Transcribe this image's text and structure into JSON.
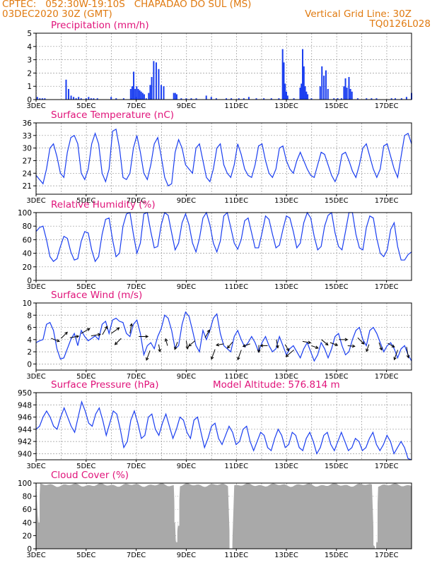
{
  "header": {
    "line1": "CPTEC:   052:30W-19:10S   CHAPADAO DO SUL (MS)",
    "line2": "03DEC2020 30Z (GMT)",
    "grid_note": "Vertical Grid Line: 30Z",
    "run_id": "TQ0126L028"
  },
  "colors": {
    "header": "#e07a10",
    "panel_title": "#e0137a",
    "series": "#1a3ef0",
    "cloud": "#a9a9a9",
    "grid": "#999999"
  },
  "chart_data": [
    {
      "id": "precip",
      "type": "bar",
      "title": "Precipitation (mm/h)",
      "ylim": [
        0,
        5
      ],
      "yticks": [
        0,
        1,
        2,
        3,
        4,
        5
      ],
      "xlim": [
        0,
        15
      ],
      "xticks": [
        "3DEC",
        "5DEC",
        "7DEC",
        "9DEC",
        "11DEC",
        "13DEC",
        "15DEC",
        "17DEC"
      ],
      "x": [
        0.05,
        0.15,
        0.25,
        0.35,
        1.2,
        1.3,
        1.4,
        1.5,
        1.6,
        1.7,
        1.8,
        2.0,
        2.1,
        2.2,
        2.3,
        2.45,
        3.0,
        3.2,
        3.5,
        3.8,
        4.0,
        4.2,
        4.4,
        4.6,
        4.9,
        5.8,
        6.0,
        6.2,
        6.4,
        6.8,
        7.0,
        7.2,
        7.6,
        7.8,
        8.1,
        8.3,
        8.5,
        8.8,
        9.1,
        9.4,
        9.7,
        10.0,
        10.3,
        10.6,
        11.0,
        11.5,
        11.9,
        12.05,
        12.2,
        12.55,
        12.85,
        13.2,
        13.4,
        13.6,
        14.2,
        14.35,
        14.6,
        14.8,
        15.0
      ],
      "y": [
        0.2,
        0.1,
        0.1,
        0.1,
        1.5,
        0.8,
        0.3,
        0.2,
        0.1,
        0.2,
        0.1,
        0.1,
        0.2,
        0.1,
        0.1,
        0.1,
        0.2,
        0.1,
        0.1,
        0.1,
        0.2,
        0.1,
        0.1,
        0.1,
        0.1,
        0.1,
        0.1,
        0.1,
        0.1,
        0.3,
        0.2,
        0.1,
        0.1,
        0.1,
        0.1,
        0.1,
        0.2,
        0.1,
        0.1,
        0.1,
        0.1,
        0.1,
        0.1,
        0.1,
        0.1,
        0.1,
        0.1,
        0.1,
        0.1,
        0.1,
        0.1,
        0.1,
        0.1,
        0.1,
        0.1,
        0.1,
        0.1,
        0.2,
        0.5
      ],
      "bursts": [
        {
          "x": [
            3.78,
            3.84,
            3.9,
            3.96,
            4.02,
            4.08,
            4.14,
            4.2,
            4.26,
            4.32
          ],
          "y": [
            0.8,
            1.0,
            2.1,
            0.8,
            1.0,
            0.8,
            0.7,
            0.6,
            0.5,
            0.4
          ]
        },
        {
          "x": [
            4.5,
            4.56,
            4.62,
            4.7,
            4.8,
            4.9,
            5.0,
            5.1
          ],
          "y": [
            0.5,
            1.1,
            1.7,
            2.9,
            2.8,
            2.3,
            1.1,
            1.0
          ]
        },
        {
          "x": [
            9.85,
            9.9,
            9.95,
            10.0,
            10.05
          ],
          "y": [
            3.8,
            2.8,
            1.2,
            0.6,
            0.3
          ]
        },
        {
          "x": [
            10.55,
            10.6,
            10.65,
            10.7,
            10.75,
            10.8,
            10.85
          ],
          "y": [
            0.9,
            1.2,
            3.8,
            2.5,
            1.0,
            0.6,
            0.4
          ]
        },
        {
          "x": [
            11.35,
            11.42,
            11.5,
            11.58,
            11.66
          ],
          "y": [
            1.0,
            2.5,
            1.8,
            2.2,
            0.8
          ]
        },
        {
          "x": [
            12.3,
            12.36,
            12.42,
            12.5,
            12.56,
            12.62
          ],
          "y": [
            1.0,
            1.6,
            0.9,
            1.7,
            0.8,
            0.6
          ]
        },
        {
          "x": [
            5.5,
            5.56,
            5.62
          ],
          "y": [
            0.5,
            0.5,
            0.4
          ]
        }
      ]
    },
    {
      "id": "temp",
      "type": "line",
      "title": "Surface Temperature (nC)",
      "ylim": [
        19,
        36
      ],
      "yticks": [
        21,
        24,
        27,
        30,
        33,
        36
      ],
      "y": [
        23.5,
        22.5,
        21.5,
        25,
        30,
        31,
        28,
        24,
        23,
        29,
        32.5,
        33,
        31,
        24,
        22.5,
        25,
        31,
        33.5,
        31,
        24,
        22,
        25,
        34,
        34.5,
        30,
        23,
        22.5,
        24,
        30,
        33,
        29,
        24,
        22.5,
        26,
        31,
        32.5,
        28,
        23,
        21,
        21.5,
        29,
        32,
        30,
        26,
        25,
        24,
        30,
        31,
        27,
        23,
        22,
        25,
        30,
        31,
        26,
        24,
        23,
        26,
        31,
        28.5,
        25,
        23.5,
        23,
        26,
        30.5,
        31,
        27,
        24,
        23,
        25,
        30,
        30.5,
        27,
        25,
        24,
        27,
        29,
        27,
        25,
        23.5,
        23,
        26,
        29,
        28.5,
        26,
        23.5,
        22,
        24,
        28.5,
        29,
        27,
        24.5,
        23,
        26,
        30,
        31,
        28,
        25,
        23,
        25,
        30.5,
        31,
        28,
        25,
        23,
        28,
        33,
        33.5,
        31
      ]
    },
    {
      "id": "rh",
      "type": "line",
      "title": "Relative Humidity (%)",
      "ylim": [
        0,
        100
      ],
      "yticks": [
        0,
        20,
        40,
        60,
        80,
        100
      ],
      "y": [
        72,
        78,
        80,
        60,
        35,
        28,
        32,
        50,
        65,
        62,
        42,
        30,
        32,
        58,
        72,
        70,
        45,
        28,
        35,
        68,
        90,
        92,
        60,
        35,
        40,
        80,
        98,
        100,
        68,
        40,
        55,
        98,
        100,
        72,
        48,
        50,
        82,
        100,
        96,
        70,
        45,
        55,
        85,
        98,
        82,
        55,
        42,
        62,
        92,
        100,
        82,
        55,
        42,
        58,
        95,
        100,
        78,
        55,
        46,
        60,
        88,
        92,
        70,
        48,
        48,
        70,
        95,
        90,
        68,
        48,
        52,
        75,
        95,
        92,
        72,
        48,
        55,
        85,
        100,
        92,
        65,
        45,
        50,
        80,
        96,
        100,
        70,
        50,
        45,
        72,
        100,
        100,
        68,
        48,
        45,
        78,
        95,
        92,
        62,
        40,
        35,
        45,
        75,
        85,
        50,
        30,
        30,
        38,
        42
      ]
    },
    {
      "id": "wind",
      "type": "line",
      "title": "Surface Wind (m/s)",
      "ylim": [
        -1,
        10
      ],
      "yticks": [
        0,
        2,
        4,
        6,
        8,
        10
      ],
      "y": [
        3.5,
        3.8,
        4.0,
        6.5,
        6.8,
        5.5,
        2.5,
        0.8,
        1.0,
        2.5,
        4.0,
        5.0,
        3.0,
        5.5,
        4.5,
        3.8,
        4.2,
        4.6,
        4.0,
        6.5,
        7.0,
        5.0,
        7.2,
        7.5,
        7.0,
        6.8,
        5.0,
        4.5,
        6.5,
        7.2,
        5.0,
        1.5,
        3.0,
        3.5,
        2.5,
        4.5,
        5.8,
        8.0,
        7.5,
        5.5,
        2.5,
        3.0,
        6.5,
        8.5,
        7.8,
        5.5,
        3.0,
        2.0,
        5.5,
        4.0,
        5.5,
        7.5,
        8.2,
        5.0,
        3.0,
        2.5,
        2.0,
        4.5,
        5.5,
        4.0,
        2.8,
        3.5,
        4.5,
        3.5,
        2.0,
        3.5,
        4.5,
        3.0,
        2.0,
        2.5,
        4.5,
        3.0,
        1.5,
        2.5,
        3.0,
        2.0,
        1.0,
        2.5,
        3.5,
        2.0,
        0.5,
        1.5,
        3.5,
        2.5,
        1.0,
        2.5,
        4.5,
        5.0,
        3.0,
        1.5,
        2.0,
        4.0,
        5.5,
        6.0,
        4.0,
        3.0,
        5.5,
        6.0,
        5.0,
        3.5,
        2.0,
        3.0,
        3.5,
        2.5,
        1.0,
        2.5,
        3.0,
        1.5,
        0.5
      ],
      "vectors": [
        {
          "x": 0.6,
          "v": 4.2,
          "dir": 110
        },
        {
          "x": 1.0,
          "v": 4.2,
          "dir": 45
        },
        {
          "x": 1.35,
          "v": 4.3,
          "dir": 80
        },
        {
          "x": 1.8,
          "v": 5.0,
          "dir": 60
        },
        {
          "x": 2.2,
          "v": 4.6,
          "dir": 80
        },
        {
          "x": 2.65,
          "v": 4.8,
          "dir": 30
        },
        {
          "x": 3.0,
          "v": 5.0,
          "dir": 55
        },
        {
          "x": 3.4,
          "v": 4.2,
          "dir": 225
        },
        {
          "x": 3.75,
          "v": 5.0,
          "dir": 10
        },
        {
          "x": 4.1,
          "v": 4.5,
          "dir": 90
        },
        {
          "x": 4.55,
          "v": 2.2,
          "dir": 200
        },
        {
          "x": 4.9,
          "v": 3.2,
          "dir": 170
        },
        {
          "x": 5.25,
          "v": 3.0,
          "dir": 345
        },
        {
          "x": 5.65,
          "v": 3.6,
          "dir": 200
        },
        {
          "x": 6.0,
          "v": 3.8,
          "dir": 170
        },
        {
          "x": 6.35,
          "v": 3.8,
          "dir": 230
        },
        {
          "x": 6.75,
          "v": 4.3,
          "dir": 30
        },
        {
          "x": 7.15,
          "v": 2.4,
          "dir": 200
        },
        {
          "x": 7.5,
          "v": 3.3,
          "dir": 260
        },
        {
          "x": 7.85,
          "v": 3.6,
          "dir": 220
        },
        {
          "x": 8.2,
          "v": 2.3,
          "dir": 200
        },
        {
          "x": 8.55,
          "v": 3.3,
          "dir": 250
        },
        {
          "x": 8.9,
          "v": 3.1,
          "dir": 180
        },
        {
          "x": 9.25,
          "v": 3.0,
          "dir": 270
        },
        {
          "x": 9.6,
          "v": 4.0,
          "dir": 170
        },
        {
          "x": 9.95,
          "v": 3.2,
          "dir": 150
        },
        {
          "x": 10.3,
          "v": 2.3,
          "dir": 230
        },
        {
          "x": 10.65,
          "v": 3.7,
          "dir": 100
        },
        {
          "x": 11.0,
          "v": 3.0,
          "dir": 110
        },
        {
          "x": 11.4,
          "v": 4.0,
          "dir": 130
        },
        {
          "x": 11.75,
          "v": 3.5,
          "dir": 110
        },
        {
          "x": 12.1,
          "v": 4.0,
          "dir": 90
        },
        {
          "x": 12.45,
          "v": 3.0,
          "dir": 95
        },
        {
          "x": 12.85,
          "v": 4.3,
          "dir": 135
        },
        {
          "x": 13.3,
          "v": 3.2,
          "dir": 200
        },
        {
          "x": 13.7,
          "v": 3.5,
          "dir": 160
        },
        {
          "x": 14.05,
          "v": 3.4,
          "dir": 120
        },
        {
          "x": 14.45,
          "v": 2.3,
          "dir": 200
        },
        {
          "x": 14.8,
          "v": 2.8,
          "dir": 170
        }
      ]
    },
    {
      "id": "pres",
      "type": "line",
      "title": "Surface Pressure (hPa)",
      "extra_label": "Model Altitude: 576.814 m",
      "ylim": [
        939,
        950
      ],
      "yticks": [
        940,
        942,
        944,
        946,
        948,
        950
      ],
      "y": [
        944,
        944.5,
        946,
        947,
        946,
        944.5,
        944,
        946,
        947.5,
        946,
        944.5,
        943.5,
        946,
        948.5,
        947,
        945,
        944.5,
        946.5,
        947.5,
        945.5,
        943,
        945,
        947,
        946.5,
        944,
        941,
        942,
        945.5,
        947,
        945,
        942.5,
        943,
        946,
        946.5,
        944,
        943,
        945,
        946.5,
        944.5,
        942.5,
        944,
        946,
        945.5,
        943.5,
        942.5,
        945.5,
        946,
        943.5,
        941,
        942.5,
        944.5,
        945,
        942.5,
        941.5,
        943,
        944.5,
        943.5,
        941.5,
        942,
        944,
        944.5,
        942,
        940.5,
        942,
        943.5,
        943,
        941,
        940.5,
        942.5,
        944,
        943,
        941,
        941.5,
        943.5,
        943,
        941,
        940.5,
        942.5,
        943.5,
        942,
        940,
        941,
        943,
        943.5,
        941.5,
        940.5,
        942,
        943.5,
        942,
        940.5,
        941,
        942.5,
        942,
        940.5,
        941,
        942.5,
        943.5,
        941.5,
        940.5,
        941.5,
        943,
        942,
        940,
        941,
        942,
        941,
        939.2,
        939
      ]
    },
    {
      "id": "cloud",
      "type": "area",
      "title": "Cloud Cover (%)",
      "ylim": [
        0,
        100
      ],
      "yticks": [
        0,
        20,
        40,
        60,
        80,
        100
      ],
      "dips": [
        {
          "x": 0.12,
          "y": 40
        },
        {
          "x": 5.55,
          "y": 40
        },
        {
          "x": 5.62,
          "y": 10
        },
        {
          "x": 5.7,
          "y": 35
        },
        {
          "x": 7.75,
          "y": 0
        },
        {
          "x": 7.82,
          "y": 0
        },
        {
          "x": 13.5,
          "y": 5
        },
        {
          "x": 13.56,
          "y": 0
        },
        {
          "x": 13.62,
          "y": 10
        }
      ]
    }
  ]
}
